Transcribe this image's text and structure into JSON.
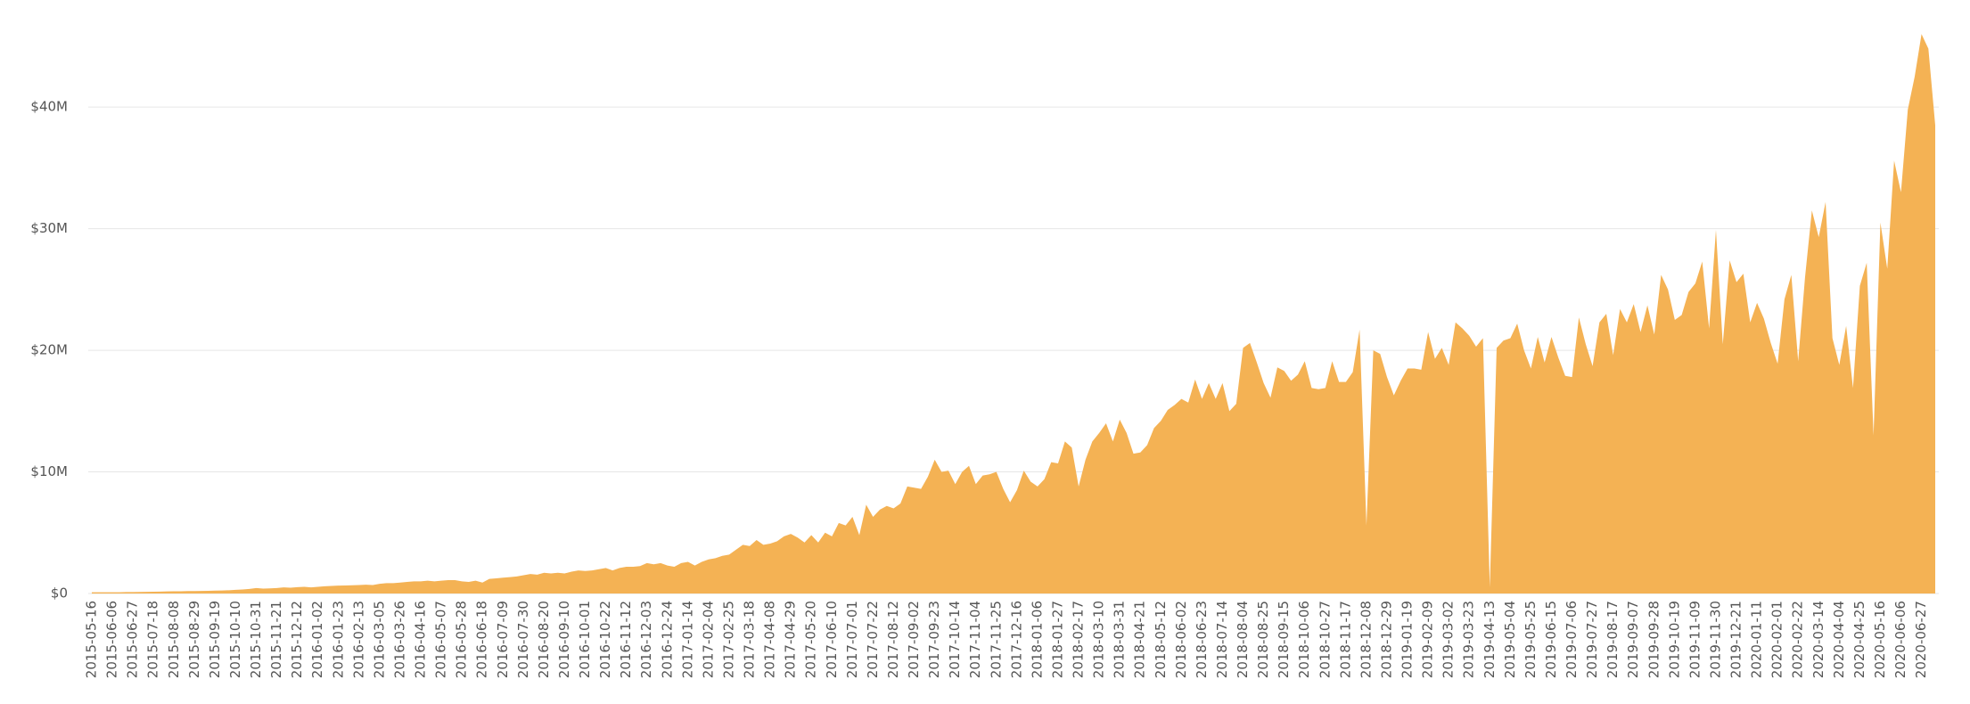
{
  "chart_data": {
    "type": "area",
    "color": "#f4b254",
    "grid": true,
    "ylim": [
      0,
      48000000
    ],
    "yticks": [
      {
        "value": 0,
        "label": "$0"
      },
      {
        "value": 10000000,
        "label": "$10M"
      },
      {
        "value": 20000000,
        "label": "$20M"
      },
      {
        "value": 30000000,
        "label": "$30M"
      },
      {
        "value": 40000000,
        "label": "$40M"
      }
    ],
    "categories": [
      "2015-05-16",
      null,
      null,
      "2015-06-06",
      null,
      null,
      "2015-06-27",
      null,
      null,
      "2015-07-18",
      null,
      null,
      "2015-08-08",
      null,
      null,
      "2015-08-29",
      null,
      null,
      "2015-09-19",
      null,
      null,
      "2015-10-10",
      null,
      null,
      "2015-10-31",
      null,
      null,
      "2015-11-21",
      null,
      null,
      "2015-12-12",
      null,
      null,
      "2016-01-02",
      null,
      null,
      "2016-01-23",
      null,
      null,
      "2016-02-13",
      null,
      null,
      "2016-03-05",
      null,
      null,
      "2016-03-26",
      null,
      null,
      "2016-04-16",
      null,
      null,
      "2016-05-07",
      null,
      null,
      "2016-05-28",
      null,
      null,
      "2016-06-18",
      null,
      null,
      "2016-07-09",
      null,
      null,
      "2016-07-30",
      null,
      null,
      "2016-08-20",
      null,
      null,
      "2016-09-10",
      null,
      null,
      "2016-10-01",
      null,
      null,
      "2016-10-22",
      null,
      null,
      "2016-11-12",
      null,
      null,
      "2016-12-03",
      null,
      null,
      "2016-12-24",
      null,
      null,
      "2017-01-14",
      null,
      null,
      "2017-02-04",
      null,
      null,
      "2017-02-25",
      null,
      null,
      "2017-03-18",
      null,
      null,
      "2017-04-08",
      null,
      null,
      "2017-04-29",
      null,
      null,
      "2017-05-20",
      null,
      null,
      "2017-06-10",
      null,
      null,
      "2017-07-01",
      null,
      null,
      "2017-07-22",
      null,
      null,
      "2017-08-12",
      null,
      null,
      "2017-09-02",
      null,
      null,
      "2017-09-23",
      null,
      null,
      "2017-10-14",
      null,
      null,
      "2017-11-04",
      null,
      null,
      "2017-11-25",
      null,
      null,
      "2017-12-16",
      null,
      null,
      "2018-01-06",
      null,
      null,
      "2018-01-27",
      null,
      null,
      "2018-02-17",
      null,
      null,
      "2018-03-10",
      null,
      null,
      "2018-03-31",
      null,
      null,
      "2018-04-21",
      null,
      null,
      "2018-05-12",
      null,
      null,
      "2018-06-02",
      null,
      null,
      "2018-06-23",
      null,
      null,
      "2018-07-14",
      null,
      null,
      "2018-08-04",
      null,
      null,
      "2018-08-25",
      null,
      null,
      "2018-09-15",
      null,
      null,
      "2018-10-06",
      null,
      null,
      "2018-10-27",
      null,
      null,
      "2018-11-17",
      null,
      null,
      "2018-12-08",
      null,
      null,
      "2018-12-29",
      null,
      null,
      "2019-01-19",
      null,
      null,
      "2019-02-09",
      null,
      null,
      "2019-03-02",
      null,
      null,
      "2019-03-23",
      null,
      null,
      "2019-04-13",
      null,
      null,
      "2019-05-04",
      null,
      null,
      "2019-05-25",
      null,
      null,
      "2019-06-15",
      null,
      null,
      "2019-07-06",
      null,
      null,
      "2019-07-27",
      null,
      null,
      "2019-08-17",
      null,
      null,
      "2019-09-07",
      null,
      null,
      "2019-09-28",
      null,
      null,
      "2019-10-19",
      null,
      null,
      "2019-11-09",
      null,
      null,
      "2019-11-30",
      null,
      null,
      "2019-12-21",
      null,
      null,
      "2020-01-11",
      null,
      null,
      "2020-02-01",
      null,
      null,
      "2020-02-22",
      null,
      null,
      "2020-03-14",
      null,
      null,
      "2020-04-04",
      null,
      null,
      "2020-04-25",
      null,
      null,
      "2020-05-16",
      null,
      null,
      "2020-06-06",
      null,
      null,
      "2020-06-27",
      null,
      null
    ],
    "values": [
      100000,
      100000,
      100000,
      100000,
      100000,
      120000,
      120000,
      130000,
      140000,
      150000,
      160000,
      170000,
      180000,
      180000,
      200000,
      200000,
      210000,
      220000,
      240000,
      250000,
      270000,
      300000,
      330000,
      380000,
      450000,
      400000,
      420000,
      450000,
      500000,
      480000,
      520000,
      550000,
      500000,
      550000,
      600000,
      620000,
      650000,
      660000,
      680000,
      700000,
      720000,
      700000,
      800000,
      850000,
      850000,
      900000,
      950000,
      1000000,
      1000000,
      1050000,
      1000000,
      1050000,
      1100000,
      1100000,
      1000000,
      950000,
      1050000,
      900000,
      1200000,
      1250000,
      1300000,
      1350000,
      1400000,
      1500000,
      1600000,
      1550000,
      1700000,
      1650000,
      1700000,
      1650000,
      1800000,
      1900000,
      1850000,
      1900000,
      2000000,
      2100000,
      1900000,
      2100000,
      2200000,
      2200000,
      2250000,
      2500000,
      2400000,
      2500000,
      2300000,
      2200000,
      2500000,
      2600000,
      2300000,
      2600000,
      2800000,
      2900000,
      3100000,
      3200000,
      3600000,
      4000000,
      3900000,
      4400000,
      4000000,
      4100000,
      4300000,
      4700000,
      4900000,
      4600000,
      4200000,
      4800000,
      4200000,
      5000000,
      4700000,
      5800000,
      5600000,
      6300000,
      4800000,
      7300000,
      6300000,
      6900000,
      7200000,
      7000000,
      7400000,
      8800000,
      8700000,
      8600000,
      9600000,
      11000000,
      10000000,
      10100000,
      9000000,
      10000000,
      10500000,
      9000000,
      9700000,
      9800000,
      10000000,
      8600000,
      7500000,
      8500000,
      10100000,
      9200000,
      8800000,
      9400000,
      10800000,
      10700000,
      12500000,
      12000000,
      8800000,
      11000000,
      12500000,
      13200000,
      14000000,
      12500000,
      14300000,
      13200000,
      11500000,
      11600000,
      12200000,
      13600000,
      14200000,
      15100000,
      15500000,
      16000000,
      15700000,
      17600000,
      16000000,
      17300000,
      16000000,
      17300000,
      15000000,
      15600000,
      20200000,
      20600000,
      19000000,
      17300000,
      16100000,
      18600000,
      18300000,
      17500000,
      18000000,
      19100000,
      16900000,
      16800000,
      16900000,
      19100000,
      17400000,
      17400000,
      18200000,
      21700000,
      5600000,
      20000000,
      19700000,
      17800000,
      16300000,
      17500000,
      18500000,
      18500000,
      18400000,
      21500000,
      19300000,
      20200000,
      18800000,
      22300000,
      21800000,
      21200000,
      20300000,
      21000000,
      500000,
      20200000,
      20800000,
      21000000,
      22200000,
      20000000,
      18500000,
      21100000,
      19000000,
      21100000,
      19400000,
      17900000,
      17800000,
      22700000,
      20500000,
      18700000,
      22300000,
      23000000,
      19600000,
      23400000,
      22300000,
      23800000,
      21500000,
      23700000,
      21300000,
      26200000,
      25000000,
      22500000,
      22900000,
      24800000,
      25500000,
      27300000,
      21800000,
      29900000,
      20500000,
      27400000,
      25600000,
      26300000,
      22300000,
      23900000,
      22600000,
      20600000,
      18900000,
      24200000,
      26200000,
      19100000,
      26000000,
      31500000,
      29300000,
      32200000,
      21000000,
      18800000,
      22000000,
      16900000,
      25300000,
      27200000,
      13000000,
      30500000,
      26700000,
      35600000,
      33000000,
      39800000,
      42500000,
      46000000,
      44800000,
      38500000
    ]
  }
}
